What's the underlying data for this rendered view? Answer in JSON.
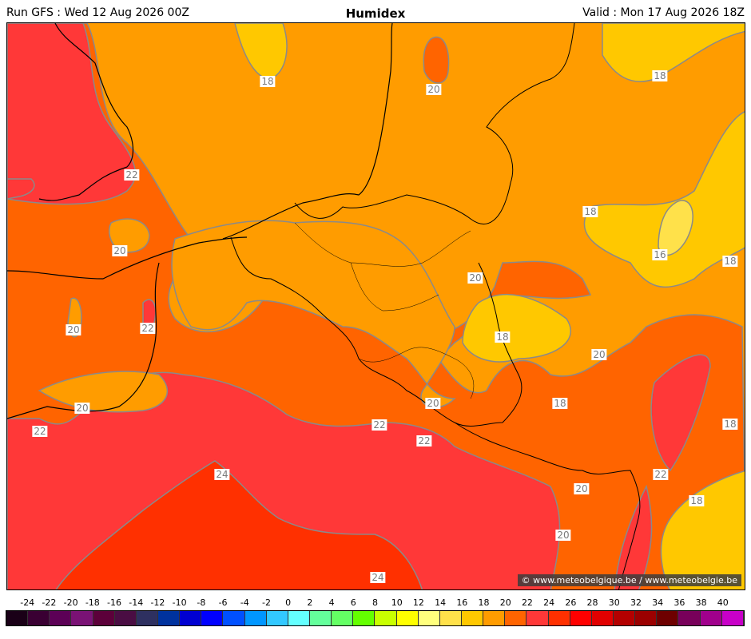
{
  "header": {
    "run": "Run GFS : Wed 12 Aug 2026 00Z",
    "title": "Humidex",
    "valid": "Valid : Mon 17 Aug 2026 18Z"
  },
  "map": {
    "contour_labels": [
      {
        "text": "18",
        "id": "n-18"
      },
      {
        "text": "20",
        "id": "n-20"
      },
      {
        "text": "18",
        "id": "ne-18"
      },
      {
        "text": "22",
        "id": "uk-22"
      },
      {
        "text": "20",
        "id": "cal-20"
      },
      {
        "text": "18",
        "id": "e-18"
      },
      {
        "text": "16",
        "id": "e-16"
      },
      {
        "text": "18",
        "id": "fe-18"
      },
      {
        "text": "20",
        "id": "mid-20"
      },
      {
        "text": "20",
        "id": "w-20"
      },
      {
        "text": "22",
        "id": "coast-22"
      },
      {
        "text": "18",
        "id": "lux-18"
      },
      {
        "text": "20",
        "id": "e2-20"
      },
      {
        "text": "20",
        "id": "lor-20"
      },
      {
        "text": "18",
        "id": "e3-18"
      },
      {
        "text": "18",
        "id": "fe2-18"
      },
      {
        "text": "20",
        "id": "bre-20"
      },
      {
        "text": "22",
        "id": "bre-22"
      },
      {
        "text": "22",
        "id": "par-22"
      },
      {
        "text": "22",
        "id": "lor-22"
      },
      {
        "text": "24",
        "id": "sw-24"
      },
      {
        "text": "22",
        "id": "rh-22"
      },
      {
        "text": "20",
        "id": "se-20"
      },
      {
        "text": "18",
        "id": "se-18"
      },
      {
        "text": "20",
        "id": "se2-20"
      },
      {
        "text": "24",
        "id": "s-24"
      }
    ],
    "copyright": "© www.meteobelgique.be / www.meteobelgie.be"
  },
  "legend": {
    "ticks": [
      "-24",
      "-22",
      "-20",
      "-18",
      "-16",
      "-14",
      "-12",
      "-10",
      "-8",
      "-6",
      "-4",
      "-2",
      "0",
      "2",
      "4",
      "6",
      "8",
      "10",
      "12",
      "14",
      "16",
      "18",
      "20",
      "22",
      "24",
      "26",
      "28",
      "30",
      "32",
      "34",
      "36",
      "38",
      "40"
    ],
    "colors": [
      "#1a0017",
      "#3a0033",
      "#5c0056",
      "#7a1275",
      "#5c003a",
      "#4a0d43",
      "#2e3060",
      "#00329e",
      "#0000d2",
      "#0000ff",
      "#0050ff",
      "#0096ff",
      "#32c8ff",
      "#64ffff",
      "#64ff9b",
      "#64ff64",
      "#64ff00",
      "#c8ff00",
      "#ffff00",
      "#ffff7d",
      "#ffe14a",
      "#ffc800",
      "#ff9c00",
      "#ff6400",
      "#ff3838",
      "#ff3000",
      "#ff0000",
      "#e10000",
      "#b40000",
      "#9b0000",
      "#6e0000",
      "#78005a",
      "#a0008c",
      "#c800c8"
    ]
  }
}
